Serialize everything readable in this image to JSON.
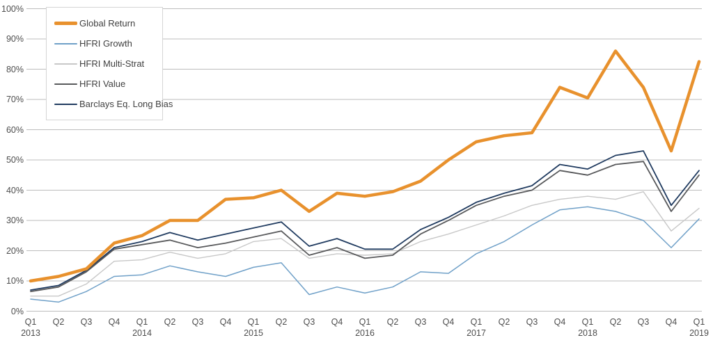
{
  "chart_data": {
    "type": "line",
    "title": "",
    "ylabel": "",
    "xlabel": "",
    "ylim": [
      0,
      100
    ],
    "grid": "horizontal",
    "legend_position": "top-left",
    "y_tick_labels": [
      "0%",
      "10%",
      "20%",
      "30%",
      "40%",
      "50%",
      "60%",
      "70%",
      "80%",
      "90%",
      "100%"
    ],
    "x_ticks": [
      {
        "label": "Q1",
        "year": "2013"
      },
      {
        "label": "Q2"
      },
      {
        "label": "Q3"
      },
      {
        "label": "Q4"
      },
      {
        "label": "Q1",
        "year": "2014"
      },
      {
        "label": "Q2"
      },
      {
        "label": "Q3"
      },
      {
        "label": "Q4"
      },
      {
        "label": "Q1",
        "year": "2015"
      },
      {
        "label": "Q2"
      },
      {
        "label": "Q3"
      },
      {
        "label": "Q4"
      },
      {
        "label": "Q1",
        "year": "2016"
      },
      {
        "label": "Q2"
      },
      {
        "label": "Q3"
      },
      {
        "label": "Q4"
      },
      {
        "label": "Q1",
        "year": "2017"
      },
      {
        "label": "Q2"
      },
      {
        "label": "Q3"
      },
      {
        "label": "Q4"
      },
      {
        "label": "Q1",
        "year": "2018"
      },
      {
        "label": "Q2"
      },
      {
        "label": "Q3"
      },
      {
        "label": "Q4"
      },
      {
        "label": "Q1",
        "year": "2019"
      }
    ],
    "series": [
      {
        "name": "Global Return",
        "color": "#E8912D",
        "thickness": 4.5,
        "values": [
          10,
          11.5,
          14,
          22.5,
          25,
          30,
          30,
          37,
          37.5,
          40,
          33,
          39,
          38,
          39.5,
          43,
          50,
          56,
          58,
          59,
          74,
          70.5,
          86,
          74,
          53,
          82.5
        ]
      },
      {
        "name": "HFRI Growth",
        "color": "#6FA0C8",
        "thickness": 1.5,
        "values": [
          4,
          3,
          6.5,
          11.5,
          12,
          15,
          13,
          11.5,
          14.5,
          16,
          5.5,
          8,
          6,
          8,
          13,
          12.5,
          19,
          23,
          28.5,
          33.5,
          34.5,
          33,
          30,
          21,
          30.5
        ]
      },
      {
        "name": "HFRI Multi-Strat",
        "color": "#C8C8C8",
        "thickness": 1.4,
        "values": [
          5,
          5,
          9,
          16.5,
          17,
          19.5,
          17.5,
          19,
          23,
          24,
          17.5,
          19,
          18.5,
          19,
          23,
          25.5,
          28.5,
          31.5,
          35,
          37,
          38,
          37,
          39.5,
          26.5,
          34
        ]
      },
      {
        "name": "HFRI Value",
        "color": "#58595B",
        "thickness": 1.8,
        "values": [
          6.5,
          8,
          13,
          20.5,
          22,
          23.5,
          21,
          22.5,
          24.5,
          26.5,
          18.5,
          21,
          17.5,
          18.5,
          25.5,
          30,
          35,
          38,
          40,
          46.5,
          45,
          48.5,
          49.5,
          33,
          45
        ]
      },
      {
        "name": "Barclays Eq. Long Bias",
        "color": "#1F3A5F",
        "thickness": 1.8,
        "values": [
          7,
          8.5,
          13.5,
          21,
          23,
          26,
          23.5,
          25.5,
          27.5,
          29.5,
          21.5,
          24,
          20.5,
          20.5,
          27,
          31,
          36,
          39,
          41.5,
          48.5,
          47,
          51.5,
          53,
          35,
          46.5
        ]
      }
    ],
    "legend_order": [
      "Global Return",
      "HFRI Growth",
      "HFRI Multi-Strat",
      "HFRI Value",
      "Barclays Eq. Long Bias"
    ],
    "gridline_color": "#BDBDBD"
  }
}
